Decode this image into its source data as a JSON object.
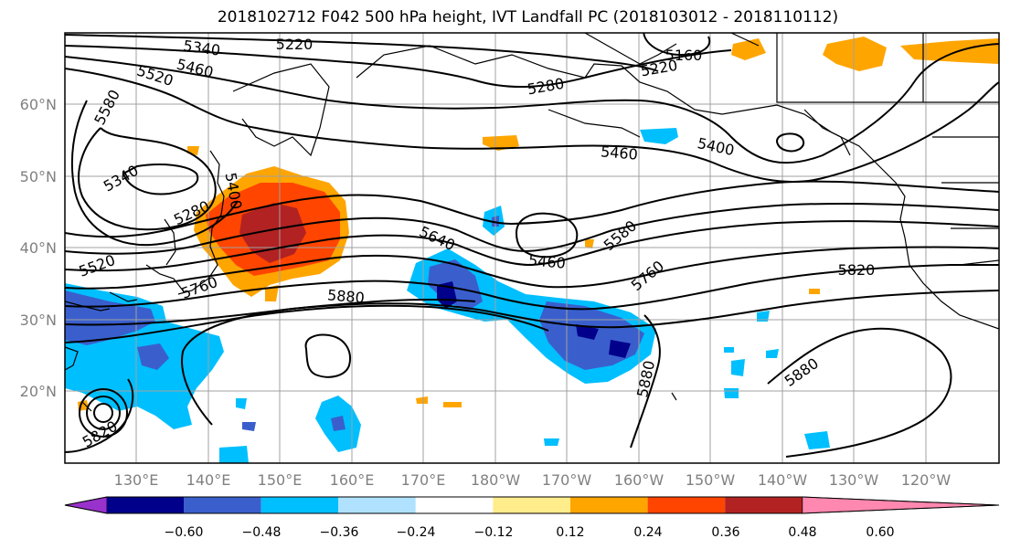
{
  "title": "2018102712 F042 500 hPa height, IVT Landfall PC (2018103012 - 2018110112)",
  "lat_labels": [
    "60°N",
    "50°N",
    "40°N",
    "30°N",
    "20°N"
  ],
  "lon_labels": [
    "130°E",
    "140°E",
    "150°E",
    "160°E",
    "170°E",
    "180°W",
    "170°W",
    "160°W",
    "150°W",
    "140°W",
    "130°W",
    "120°W"
  ],
  "contour_labels": [
    "5220",
    "5160",
    "5340",
    "5460",
    "5520",
    "5580",
    "5220",
    "5280",
    "5400",
    "5460",
    "5340",
    "5400",
    "5280",
    "5640",
    "5460",
    "5580",
    "5760",
    "5820",
    "5520",
    "5760",
    "5880",
    "5880",
    "5880",
    "5820"
  ],
  "colorbar": {
    "colors": [
      "#9932cc",
      "#00008b",
      "#3a5fcd",
      "#00bfff",
      "#b0e2ff",
      "#ffffff",
      "#ffec8b",
      "#ffa500",
      "#ff4500",
      "#b22222",
      "#ff88b0"
    ],
    "tick_labels": [
      "−0.60",
      "−0.48",
      "−0.36",
      "−0.24",
      "−0.12",
      "0.12",
      "0.24",
      "0.36",
      "0.48",
      "0.60"
    ]
  },
  "colors": {
    "positive_orange": "#ffa500",
    "positive_red": "#ff4500",
    "positive_darkred": "#b22222",
    "negative_light": "#00bfff",
    "negative_mid": "#3a5fcd",
    "negative_dark": "#00008b",
    "grid": "#a0a0a0",
    "land_outline": "#000000"
  }
}
